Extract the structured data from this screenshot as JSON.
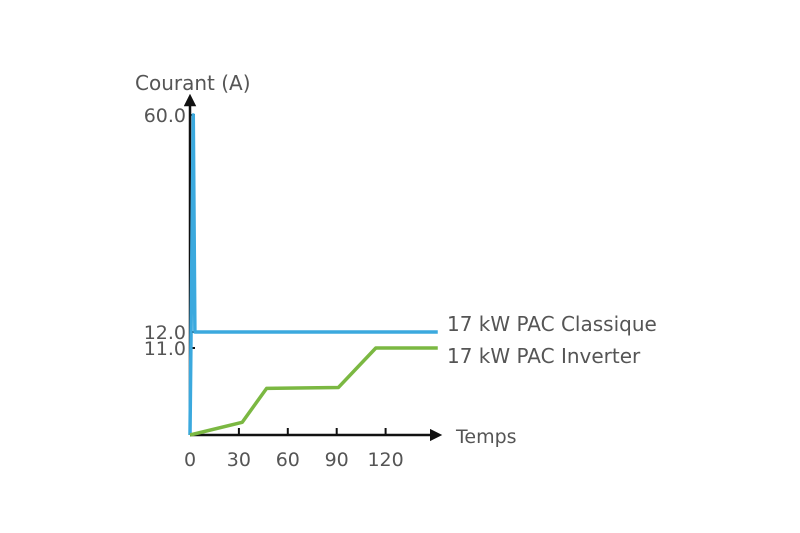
{
  "chart_data": {
    "type": "line",
    "ylabel": "Courant (A)",
    "xlabel": "Temps",
    "x_ticks": [
      0,
      30,
      60,
      90,
      120
    ],
    "y_ticks": [
      11.0,
      12.0,
      60.0
    ],
    "y_tick_labels": [
      "11.0",
      "12.0",
      "60.0"
    ],
    "xlim": [
      0,
      152
    ],
    "ylim": [
      0,
      60
    ],
    "grid": false,
    "series": [
      {
        "name": "17 kW PAC Classique",
        "color": "#3ba9de",
        "x": [
          0,
          2,
          3,
          152
        ],
        "y": [
          0,
          60,
          12,
          12
        ]
      },
      {
        "name": "17 kW PAC Inverter",
        "color": "#7bb842",
        "x": [
          0,
          32,
          47,
          91,
          114,
          152
        ],
        "y": [
          0,
          1.6,
          5.9,
          6,
          11,
          11
        ]
      }
    ]
  }
}
